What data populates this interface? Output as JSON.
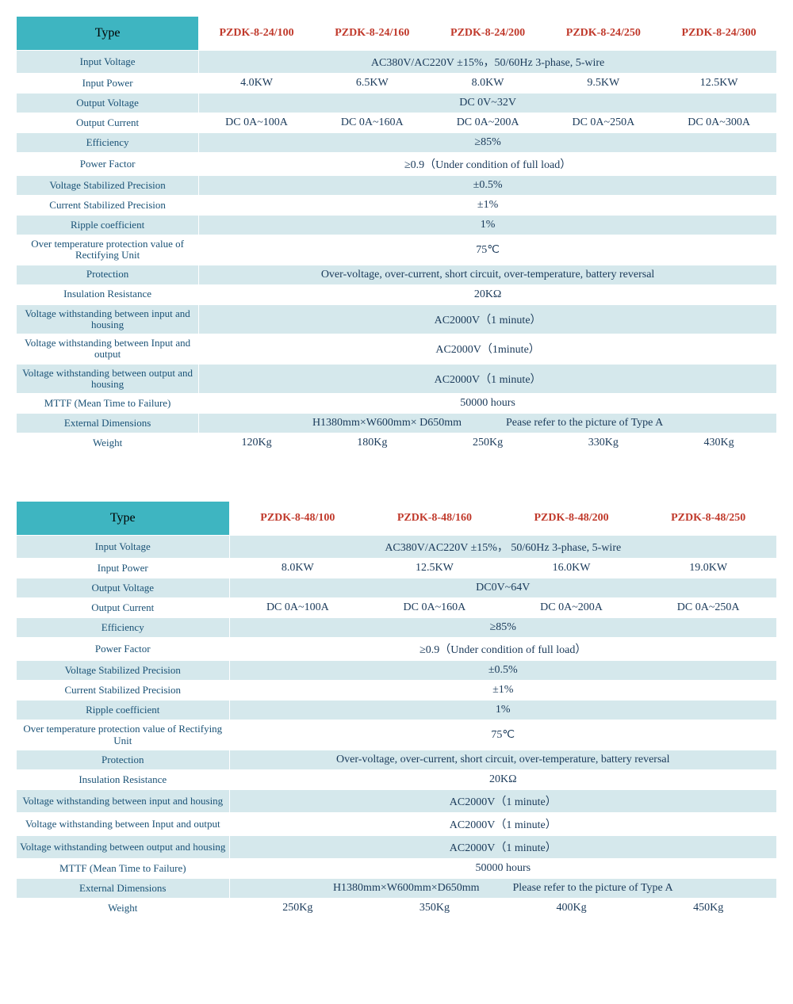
{
  "colors": {
    "header_bg": "#3eb5c1",
    "alt_row_bg": "#d5e8ec",
    "plain_row_bg": "#ffffff",
    "model_text": "#c0392b",
    "label_text": "#1a5276",
    "cell_text": "#1a3a5a",
    "border": "#ffffff"
  },
  "typography": {
    "font_family": "Times New Roman",
    "header_fontsize": 16,
    "cell_fontsize": 14,
    "label_fontsize": 13
  },
  "table1": {
    "type_header": "Type",
    "models": [
      "PZDK-8-24/100",
      "PZDK-8-24/160",
      "PZDK-8-24/200",
      "PZDK-8-24/250",
      "PZDK-8-24/300"
    ],
    "col_widths": [
      "24%",
      "15.2%",
      "15.2%",
      "15.2%",
      "15.2%",
      "15.2%"
    ],
    "rows": [
      {
        "alt": true,
        "label": "Input Voltage",
        "span": 5,
        "vals": [
          "AC380V/AC220V ±15%，50/60Hz  3-phase, 5-wire"
        ]
      },
      {
        "alt": false,
        "label": "Input Power",
        "span": 1,
        "vals": [
          "4.0KW",
          "6.5KW",
          "8.0KW",
          "9.5KW",
          "12.5KW"
        ]
      },
      {
        "alt": true,
        "label": "Output Voltage",
        "span": 5,
        "vals": [
          "DC 0V~32V"
        ]
      },
      {
        "alt": false,
        "label": "Output Current",
        "span": 1,
        "vals": [
          "DC 0A~100A",
          "DC 0A~160A",
          "DC 0A~200A",
          "DC 0A~250A",
          "DC 0A~300A"
        ]
      },
      {
        "alt": true,
        "label": "Efficiency",
        "span": 5,
        "vals": [
          "≥85%"
        ]
      },
      {
        "alt": false,
        "label": "Power Factor",
        "span": 5,
        "vals": [
          "≥0.9（Under condition of full load）"
        ]
      },
      {
        "alt": true,
        "label": "Voltage Stabilized Precision",
        "span": 5,
        "vals": [
          "±0.5%"
        ]
      },
      {
        "alt": false,
        "label": "Current Stabilized Precision",
        "span": 5,
        "vals": [
          "±1%"
        ]
      },
      {
        "alt": true,
        "label": "Ripple coefficient",
        "span": 5,
        "vals": [
          "1%"
        ]
      },
      {
        "alt": false,
        "label": "Over temperature protection value of Rectifying Unit",
        "small": true,
        "span": 5,
        "vals": [
          "75℃"
        ]
      },
      {
        "alt": true,
        "label": "Protection",
        "span": 5,
        "vals": [
          "Over-voltage, over-current, short circuit, over-temperature, battery reversal"
        ]
      },
      {
        "alt": false,
        "label": "Insulation Resistance",
        "span": 5,
        "vals": [
          "20KΩ"
        ]
      },
      {
        "alt": true,
        "label": "Voltage withstanding between input and housing",
        "small": true,
        "span": 5,
        "vals": [
          "AC2000V（1  minute）"
        ]
      },
      {
        "alt": false,
        "label": "Voltage withstanding between Input and output",
        "small": true,
        "span": 5,
        "vals": [
          "AC2000V（1minute）"
        ]
      },
      {
        "alt": true,
        "label": "Voltage withstanding between output and housing",
        "small": true,
        "span": 5,
        "vals": [
          "AC2000V（1  minute）"
        ]
      },
      {
        "alt": false,
        "label": "MTTF (Mean Time to Failure)",
        "span": 5,
        "vals": [
          "50000  hours"
        ]
      },
      {
        "alt": true,
        "label": "External Dimensions",
        "span": 5,
        "vals": [
          "H1380mm×W600mm× D650mm    Pease refer to the picture of Type A"
        ]
      },
      {
        "alt": false,
        "label": "Weight",
        "span": 1,
        "vals": [
          "120Kg",
          "180Kg",
          "250Kg",
          "330Kg",
          "430Kg"
        ]
      }
    ]
  },
  "table2": {
    "type_header": "Type",
    "models": [
      "PZDK-8-48/100",
      "PZDK-8-48/160",
      "PZDK-8-48/200",
      "PZDK-8-48/250"
    ],
    "col_widths": [
      "28%",
      "18%",
      "18%",
      "18%",
      "18%"
    ],
    "rows": [
      {
        "alt": true,
        "label": "Input Voltage",
        "span": 4,
        "vals": [
          "AC380V/AC220V ±15%， 50/60Hz  3-phase, 5-wire"
        ]
      },
      {
        "alt": false,
        "label": "Input Power",
        "span": 1,
        "vals": [
          "8.0KW",
          "12.5KW",
          "16.0KW",
          "19.0KW"
        ]
      },
      {
        "alt": true,
        "label": "Output Voltage",
        "span": 4,
        "vals": [
          "DC0V~64V"
        ]
      },
      {
        "alt": false,
        "label": "Output Current",
        "span": 1,
        "vals": [
          "DC 0A~100A",
          "DC 0A~160A",
          "DC 0A~200A",
          "DC 0A~250A"
        ]
      },
      {
        "alt": true,
        "label": "Efficiency",
        "span": 4,
        "vals": [
          "≥85%"
        ]
      },
      {
        "alt": false,
        "label": "Power Factor",
        "span": 4,
        "vals": [
          "≥0.9（Under condition of full load）"
        ]
      },
      {
        "alt": true,
        "label": "Voltage Stabilized Precision",
        "span": 4,
        "vals": [
          "±0.5%"
        ]
      },
      {
        "alt": false,
        "label": "Current Stabilized Precision",
        "span": 4,
        "vals": [
          "±1%"
        ]
      },
      {
        "alt": true,
        "label": "Ripple coefficient",
        "span": 4,
        "vals": [
          "1%"
        ]
      },
      {
        "alt": false,
        "label": "Over temperature protection value of Rectifying Unit",
        "small": true,
        "span": 4,
        "vals": [
          "75℃"
        ]
      },
      {
        "alt": true,
        "label": "Protection",
        "span": 4,
        "vals": [
          "Over-voltage, over-current, short circuit, over-temperature, battery reversal"
        ]
      },
      {
        "alt": false,
        "label": "Insulation Resistance",
        "span": 4,
        "vals": [
          "20KΩ"
        ]
      },
      {
        "alt": true,
        "label": "Voltage withstanding between input and housing",
        "span": 4,
        "vals": [
          "AC2000V（1 minute）"
        ]
      },
      {
        "alt": false,
        "label": "Voltage withstanding between Input and output",
        "span": 4,
        "vals": [
          "AC2000V（1  minute）"
        ]
      },
      {
        "alt": true,
        "label": "Voltage withstanding between output and housing",
        "span": 4,
        "vals": [
          "AC2000V（1  minute）"
        ]
      },
      {
        "alt": false,
        "label": "MTTF (Mean Time to Failure)",
        "span": 4,
        "vals": [
          "50000  hours"
        ]
      },
      {
        "alt": true,
        "label": "External Dimensions",
        "span": 4,
        "vals": [
          "H1380mm×W600mm×D650mm   Please refer to the picture of Type A"
        ]
      },
      {
        "alt": false,
        "label": "Weight",
        "span": 1,
        "vals": [
          "250Kg",
          "350Kg",
          "400Kg",
          "450Kg"
        ]
      }
    ]
  }
}
